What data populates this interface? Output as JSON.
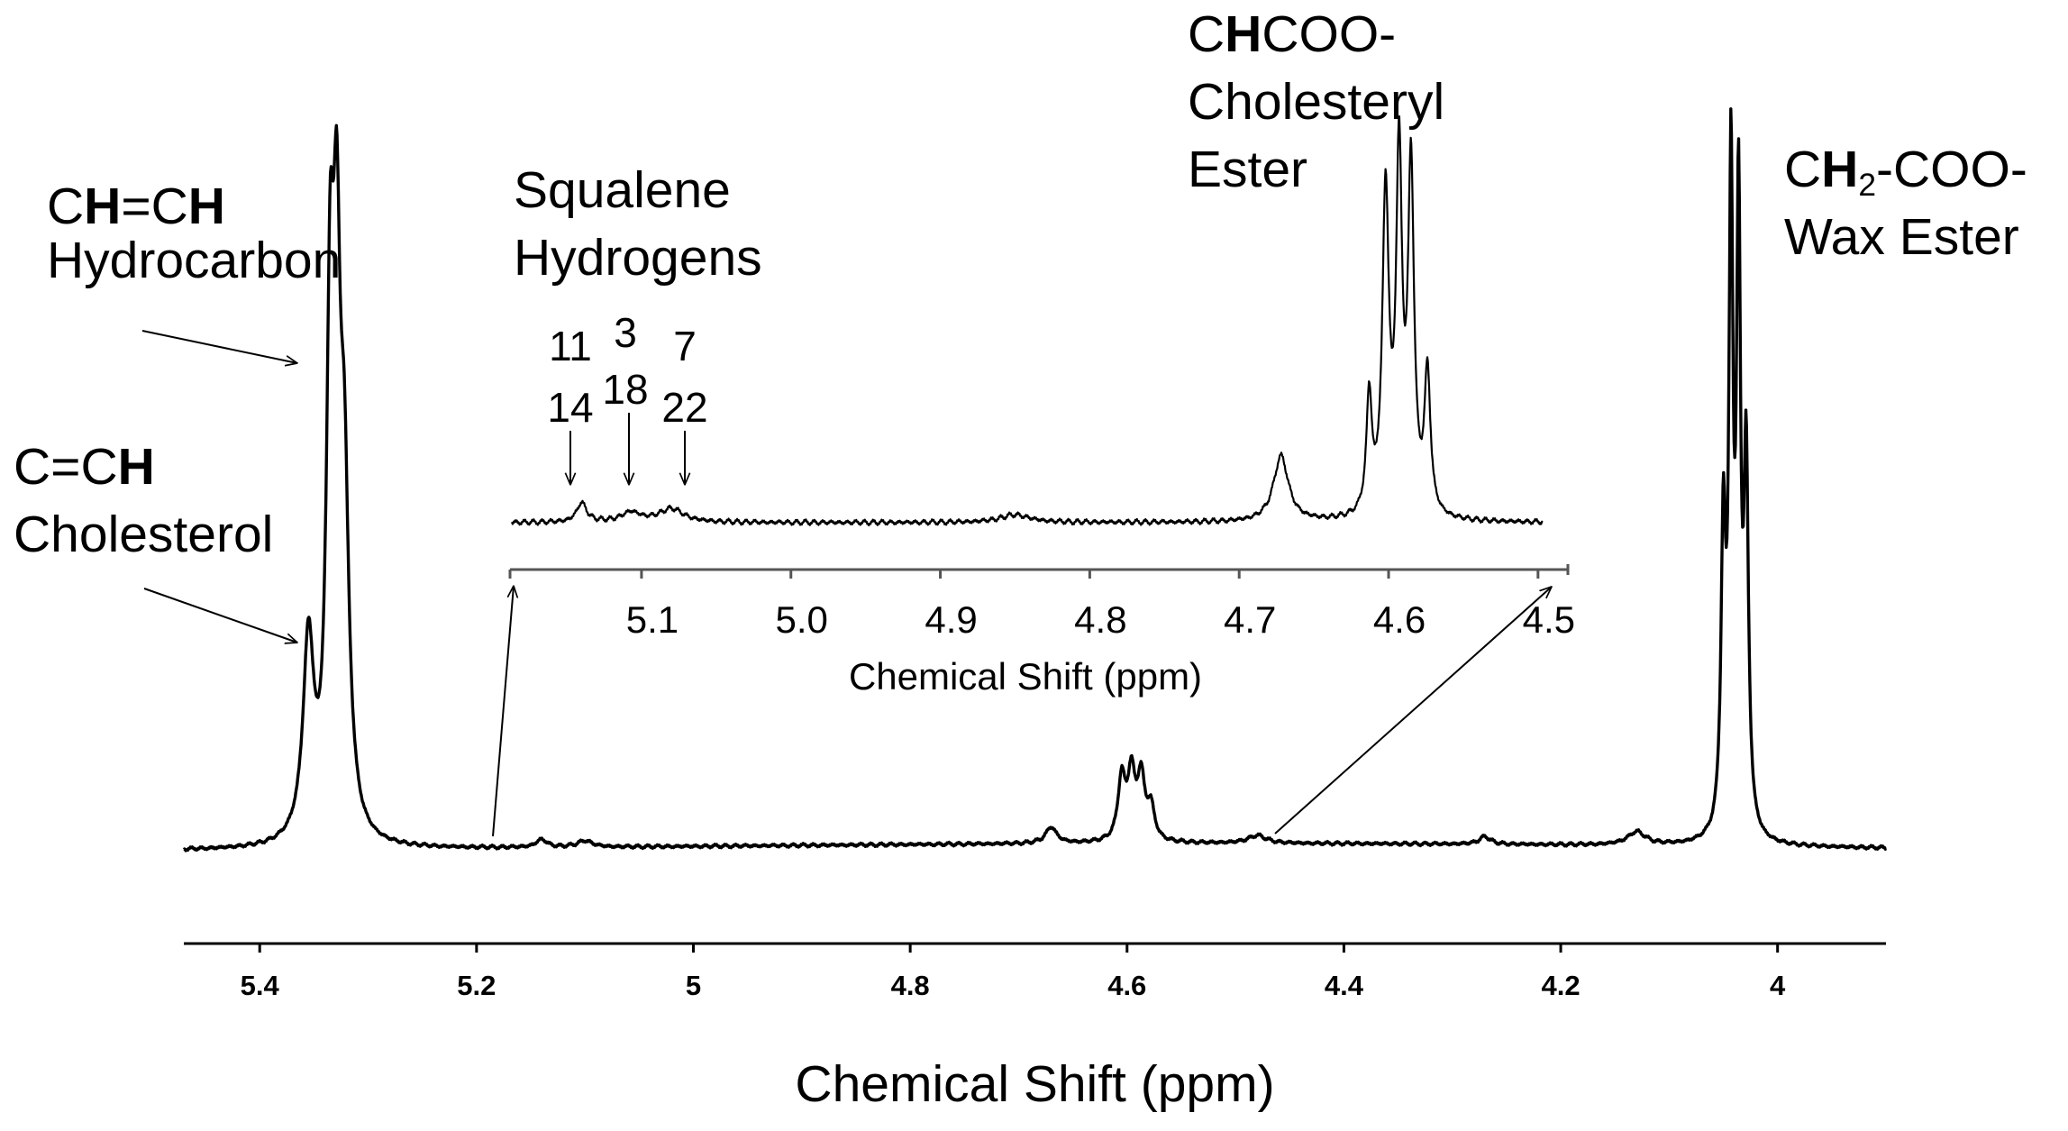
{
  "chart_data": [
    {
      "type": "line",
      "title": "",
      "xlabel": "Chemical Shift (ppm)",
      "ylabel": "",
      "xlim": [
        5.47,
        3.9
      ],
      "reversed_x": true,
      "x_ticks": [
        "5.4",
        "5.2",
        "5",
        "4.8",
        "4.6",
        "4.4",
        "4.2",
        "4"
      ],
      "x_tick_values": [
        5.4,
        5.2,
        5.0,
        4.8,
        4.6,
        4.4,
        4.2,
        4.0
      ],
      "grid": false,
      "series": [
        {
          "peaks": [
            {
              "shift": 5.355,
              "height": 0.3,
              "width": 0.006
            },
            {
              "shift": 5.335,
              "height": 0.72,
              "width": 0.004
            },
            {
              "shift": 5.329,
              "height": 0.7,
              "width": 0.004
            },
            {
              "shift": 5.322,
              "height": 0.48,
              "width": 0.005
            },
            {
              "shift": 5.14,
              "height": 0.012,
              "width": 0.006
            },
            {
              "shift": 5.1,
              "height": 0.01,
              "width": 0.008
            },
            {
              "shift": 4.67,
              "height": 0.025,
              "width": 0.006
            },
            {
              "shift": 4.605,
              "height": 0.095,
              "width": 0.004
            },
            {
              "shift": 4.596,
              "height": 0.1,
              "width": 0.004
            },
            {
              "shift": 4.587,
              "height": 0.095,
              "width": 0.004
            },
            {
              "shift": 4.578,
              "height": 0.05,
              "width": 0.004
            },
            {
              "shift": 4.48,
              "height": 0.012,
              "width": 0.01
            },
            {
              "shift": 4.27,
              "height": 0.012,
              "width": 0.006
            },
            {
              "shift": 4.13,
              "height": 0.02,
              "width": 0.01
            },
            {
              "shift": 4.05,
              "height": 0.45,
              "width": 0.0025
            },
            {
              "shift": 4.043,
              "height": 0.98,
              "width": 0.0022
            },
            {
              "shift": 4.036,
              "height": 0.92,
              "width": 0.0022
            },
            {
              "shift": 4.029,
              "height": 0.55,
              "width": 0.0025
            }
          ]
        }
      ],
      "annotations": [
        {
          "lines": [
            {
              "parts": [
                {
                  "text": "C"
                },
                {
                  "text": "H",
                  "bold": true
                },
                {
                  "text": "=C"
                },
                {
                  "text": "H",
                  "bold": true
                }
              ]
            },
            {
              "parts": [
                {
                  "text": "Hydrocarbon"
                }
              ]
            }
          ],
          "points_to": 5.335
        },
        {
          "lines": [
            {
              "parts": [
                {
                  "text": "C=C"
                },
                {
                  "text": "H",
                  "bold": true
                }
              ]
            },
            {
              "parts": [
                {
                  "text": "Cholesterol"
                }
              ]
            }
          ],
          "points_to": 5.355
        },
        {
          "lines": [
            {
              "parts": [
                {
                  "text": "C"
                },
                {
                  "text": "H",
                  "bold": true
                },
                {
                  "text": "COO-"
                }
              ]
            },
            {
              "parts": [
                {
                  "text": "Cholesteryl"
                }
              ]
            },
            {
              "parts": [
                {
                  "text": "Ester"
                }
              ]
            }
          ]
        },
        {
          "lines": [
            {
              "parts": [
                {
                  "text": "C"
                },
                {
                  "text": "H",
                  "bold": true
                },
                {
                  "text": "2",
                  "sub": true
                },
                {
                  "text": "-COO-"
                }
              ]
            },
            {
              "parts": [
                {
                  "text": "Wax Ester"
                }
              ]
            }
          ]
        }
      ]
    },
    {
      "type": "line",
      "title": "",
      "xlabel": "Chemical Shift (ppm)",
      "ylabel": "",
      "inset": true,
      "xlim": [
        5.188,
        4.48
      ],
      "reversed_x": true,
      "x_ticks": [
        "5.1",
        "5.0",
        "4.9",
        "4.8",
        "4.7",
        "4.6",
        "4.5"
      ],
      "x_tick_values": [
        5.1,
        5.0,
        4.9,
        4.8,
        4.7,
        4.6,
        4.5
      ],
      "grid": false,
      "series": [
        {
          "peaks": [
            {
              "shift": 5.14,
              "height": 0.05,
              "width": 0.004
            },
            {
              "shift": 5.107,
              "height": 0.025,
              "width": 0.008
            },
            {
              "shift": 5.08,
              "height": 0.035,
              "width": 0.01
            },
            {
              "shift": 4.85,
              "height": 0.02,
              "width": 0.012
            },
            {
              "shift": 4.672,
              "height": 0.17,
              "width": 0.006
            },
            {
              "shift": 4.613,
              "height": 0.3,
              "width": 0.0022
            },
            {
              "shift": 4.602,
              "height": 0.82,
              "width": 0.0026
            },
            {
              "shift": 4.593,
              "height": 0.9,
              "width": 0.0024
            },
            {
              "shift": 4.585,
              "height": 0.88,
              "width": 0.0024
            },
            {
              "shift": 4.574,
              "height": 0.36,
              "width": 0.0024
            }
          ]
        }
      ],
      "group_title": [
        "Squalene",
        "Hydrogens"
      ],
      "labels": [
        {
          "top": "11",
          "bottom": "14",
          "shift": 5.14
        },
        {
          "top": "3",
          "bottom": "18",
          "shift": 5.107
        },
        {
          "top": "7",
          "bottom": "22",
          "shift": 5.068
        }
      ]
    }
  ]
}
